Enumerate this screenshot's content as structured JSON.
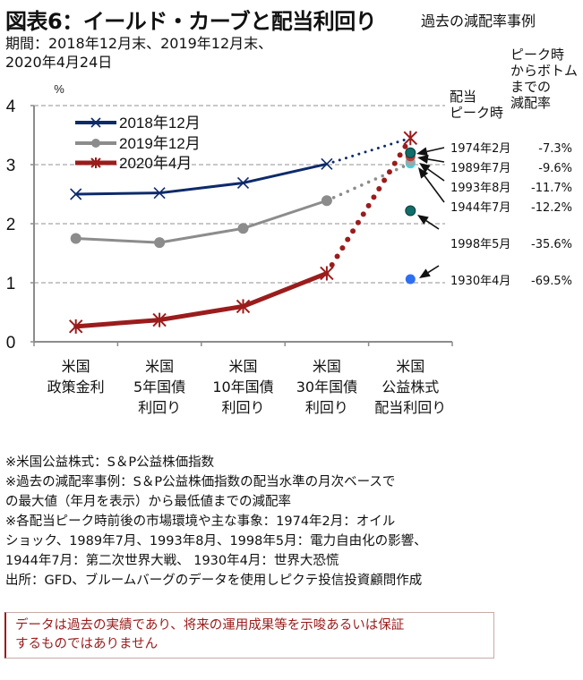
{
  "header": {
    "title": "図表6：イールド・カーブと配当利回り",
    "period_line1": "期間：2018年12月末、2019年12月末、",
    "period_line2": "2020年4月24日",
    "side_title": "過去の減配率事例",
    "col_peak_line1": "配当",
    "col_peak_line2": "ピーク時",
    "col_cut_line1": "ピーク時",
    "col_cut_line2": "からボトム",
    "col_cut_line3": "までの",
    "col_cut_line4": "減配率"
  },
  "chart_data": {
    "type": "line",
    "ylabel": "%",
    "ylim": [
      0,
      4
    ],
    "yticks": [
      "0",
      "1",
      "2",
      "3",
      "4"
    ],
    "grid": true,
    "legend_position": "top-left",
    "categories": [
      [
        "米国",
        "政策金利"
      ],
      [
        "米国",
        "5年国債",
        "利回り"
      ],
      [
        "米国",
        "10年国債",
        "利回り"
      ],
      [
        "米国",
        "30年国債",
        "利回り"
      ],
      [
        "米国",
        "公益株式",
        "配当利回り"
      ]
    ],
    "series": [
      {
        "name": "2018年12月",
        "color": "#0d2a6b",
        "marker": "x",
        "values": [
          2.5,
          2.52,
          2.69,
          3.01,
          3.45
        ],
        "dotted_last_segment": true
      },
      {
        "name": "2019年12月",
        "color": "#8c8c8c",
        "marker": "circle",
        "values": [
          1.75,
          1.68,
          1.92,
          2.39,
          3.02
        ],
        "dotted_last_segment": true
      },
      {
        "name": "2020年4月",
        "color": "#9b1c1c",
        "marker": "asterisk",
        "values": [
          0.26,
          0.37,
          0.6,
          1.16,
          3.45
        ],
        "dotted_last_segment": true
      }
    ],
    "historical_cases": [
      {
        "label": "1974年2月",
        "cut": "-7.3%",
        "value": 3.2,
        "color": "#0f6e6a"
      },
      {
        "label": "1989年7月",
        "cut": "-9.6%",
        "value": 3.14,
        "color": "#b5403c"
      },
      {
        "label": "1993年8月",
        "cut": "-11.7%",
        "value": 3.05,
        "color": "#9aa7ab"
      },
      {
        "label": "1944年7月",
        "cut": "-12.2%",
        "value": 3.02,
        "color": "#22e0e8"
      },
      {
        "label": "1998年5月",
        "cut": "-35.6%",
        "value": 2.22,
        "color": "#0f6e6a"
      },
      {
        "label": "1930年4月",
        "cut": "-69.5%",
        "value": 1.06,
        "color": "#2e6ff0"
      }
    ]
  },
  "notes": [
    "※米国公益株式：S＆P公益株価指数",
    "※過去の減配率事例：S＆P公益株価指数の配当水準の月次ベースで",
    "の最大値（年月を表示）から最低値までの減配率",
    "※各配当ピーク時前後の市場環境や主な事象：1974年2月：オイル",
    "ショック、1989年7月、1993年8月、1998年5月：電力自由化の影響、",
    "1944年7月：第二次世界大戦、 1930年4月：世界大恐慌",
    "出所：GFD、ブルームバーグのデータを使用しピクテ投信投資顧問作成"
  ],
  "disclaimer": {
    "line1": "データは過去の実績であり、将来の運用成果等を示唆あるいは保証",
    "line2": "するものではありません"
  }
}
